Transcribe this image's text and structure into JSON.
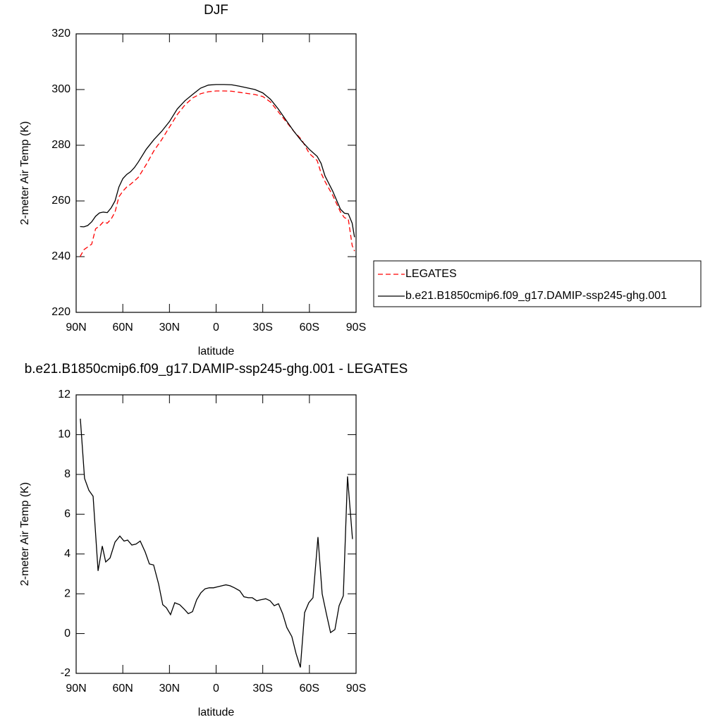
{
  "chart_data": [
    {
      "type": "line",
      "title": "DJF",
      "x_label": "latitude",
      "y_label": "2-meter Air Temp (K)",
      "x": [
        87.5,
        85,
        82.5,
        80,
        77.5,
        75,
        72.5,
        70,
        67.5,
        65,
        62.5,
        60,
        57.5,
        55,
        52.5,
        50,
        45,
        40,
        35,
        30,
        25,
        20,
        15,
        10,
        5,
        0,
        -5,
        -10,
        -15,
        -20,
        -25,
        -30,
        -35,
        -40,
        -45,
        -50,
        -55,
        -60,
        -65,
        -67.5,
        -70,
        -75,
        -80,
        -82.5,
        -85,
        -87.5,
        -89
      ],
      "series": [
        {
          "name": "LEGATES",
          "color": "#ff0000",
          "dash": "dashed",
          "values": [
            240,
            242.5,
            243.5,
            244.5,
            250,
            251,
            252.5,
            252,
            253.5,
            256,
            261.5,
            263.5,
            265,
            266,
            267.2,
            268.5,
            273,
            278,
            282,
            286.5,
            291,
            294.5,
            297,
            298.5,
            299.2,
            299.5,
            299.5,
            299.4,
            299,
            298.6,
            298.2,
            297.5,
            295.5,
            292,
            288.5,
            285,
            282,
            277,
            274.5,
            270,
            267,
            262,
            256,
            254,
            253.5,
            244,
            242
          ]
        },
        {
          "name": "b.e21.B1850cmip6.f09_g17.DAMIP-ssp245-ghg.001",
          "color": "#000000",
          "dash": "solid",
          "values": [
            250.8,
            250.7,
            251.2,
            252.5,
            254.5,
            255.7,
            256,
            255.8,
            257.5,
            260,
            265,
            268,
            269.5,
            270.5,
            272,
            274,
            278.5,
            282,
            285,
            288.5,
            293,
            296,
            298.3,
            300.5,
            301.6,
            301.8,
            301.8,
            301.7,
            301.2,
            300.6,
            300,
            298.8,
            296.5,
            293,
            289,
            285,
            281.5,
            278.5,
            276,
            273.5,
            269,
            263.5,
            257,
            255.6,
            255.4,
            252,
            247
          ]
        }
      ],
      "xlim": [
        90,
        -90
      ],
      "xticks": [
        {
          "value": 90,
          "label": "90N"
        },
        {
          "value": 60,
          "label": "60N"
        },
        {
          "value": 30,
          "label": "30N"
        },
        0,
        {
          "value": -30,
          "label": "30S"
        },
        {
          "value": -60,
          "label": "60S"
        },
        {
          "value": -90,
          "label": "90S"
        }
      ],
      "ylim": [
        220,
        320
      ],
      "yticks": [
        220,
        240,
        260,
        280,
        300,
        320
      ],
      "legend": "right"
    },
    {
      "type": "line",
      "title": "b.e21.B1850cmip6.f09_g17.DAMIP-ssp245-ghg.001 - LEGATES",
      "x_label": "latitude",
      "y_label": "2-meter Air Temp (K)",
      "x": [
        87.3,
        84.6,
        81.8,
        79.1,
        75.9,
        73.2,
        71,
        68.2,
        65,
        61.9,
        59.2,
        56.9,
        54.2,
        51.5,
        48.8,
        45.6,
        42.9,
        40.2,
        37,
        34.3,
        32,
        29.3,
        26.6,
        23.4,
        20.2,
        17.9,
        15.2,
        12.5,
        9.8,
        7.1,
        4.4,
        1.6,
        -0.9,
        -3.6,
        -6.3,
        -9.1,
        -11.8,
        -15.2,
        -17.9,
        -20.6,
        -23.3,
        -26.1,
        -28.8,
        -31.9,
        -34.7,
        -37.4,
        -40.1,
        -42.8,
        -45.5,
        -48.7,
        -51.4,
        -54.2,
        -56.9,
        -59.6,
        -62.3,
        -65.5,
        -68.2,
        -70.9,
        -73.6,
        -76.4,
        -79.1,
        -81.8,
        -84.5,
        -87.7
      ],
      "series": [
        {
          "color": "#000000",
          "dash": "solid",
          "values": [
            10.8,
            7.8,
            7.2,
            6.9,
            3.15,
            4.4,
            3.6,
            3.8,
            4.6,
            4.9,
            4.65,
            4.7,
            4.45,
            4.5,
            4.65,
            4.1,
            3.5,
            3.45,
            2.5,
            1.45,
            1.3,
            0.95,
            1.55,
            1.45,
            1.2,
            1.0,
            1.1,
            1.7,
            2.05,
            2.25,
            2.3,
            2.3,
            2.35,
            2.4,
            2.45,
            2.4,
            2.3,
            2.15,
            1.85,
            1.8,
            1.8,
            1.65,
            1.7,
            1.75,
            1.65,
            1.4,
            1.5,
            1.0,
            0.3,
            -0.15,
            -1.0,
            -1.7,
            1.05,
            1.55,
            1.8,
            4.85,
            2.0,
            1.0,
            0.05,
            0.2,
            1.4,
            1.9,
            7.9,
            4.75
          ]
        }
      ],
      "xlim": [
        90,
        -90
      ],
      "xticks": [
        {
          "value": 90,
          "label": "90N"
        },
        {
          "value": 60,
          "label": "60N"
        },
        {
          "value": 30,
          "label": "30N"
        },
        0,
        {
          "value": -30,
          "label": "30S"
        },
        {
          "value": -60,
          "label": "60S"
        },
        {
          "value": -90,
          "label": "90S"
        }
      ],
      "ylim": [
        -2,
        12
      ],
      "yticks": [
        -2,
        0,
        2,
        4,
        6,
        8,
        10,
        12
      ]
    }
  ]
}
